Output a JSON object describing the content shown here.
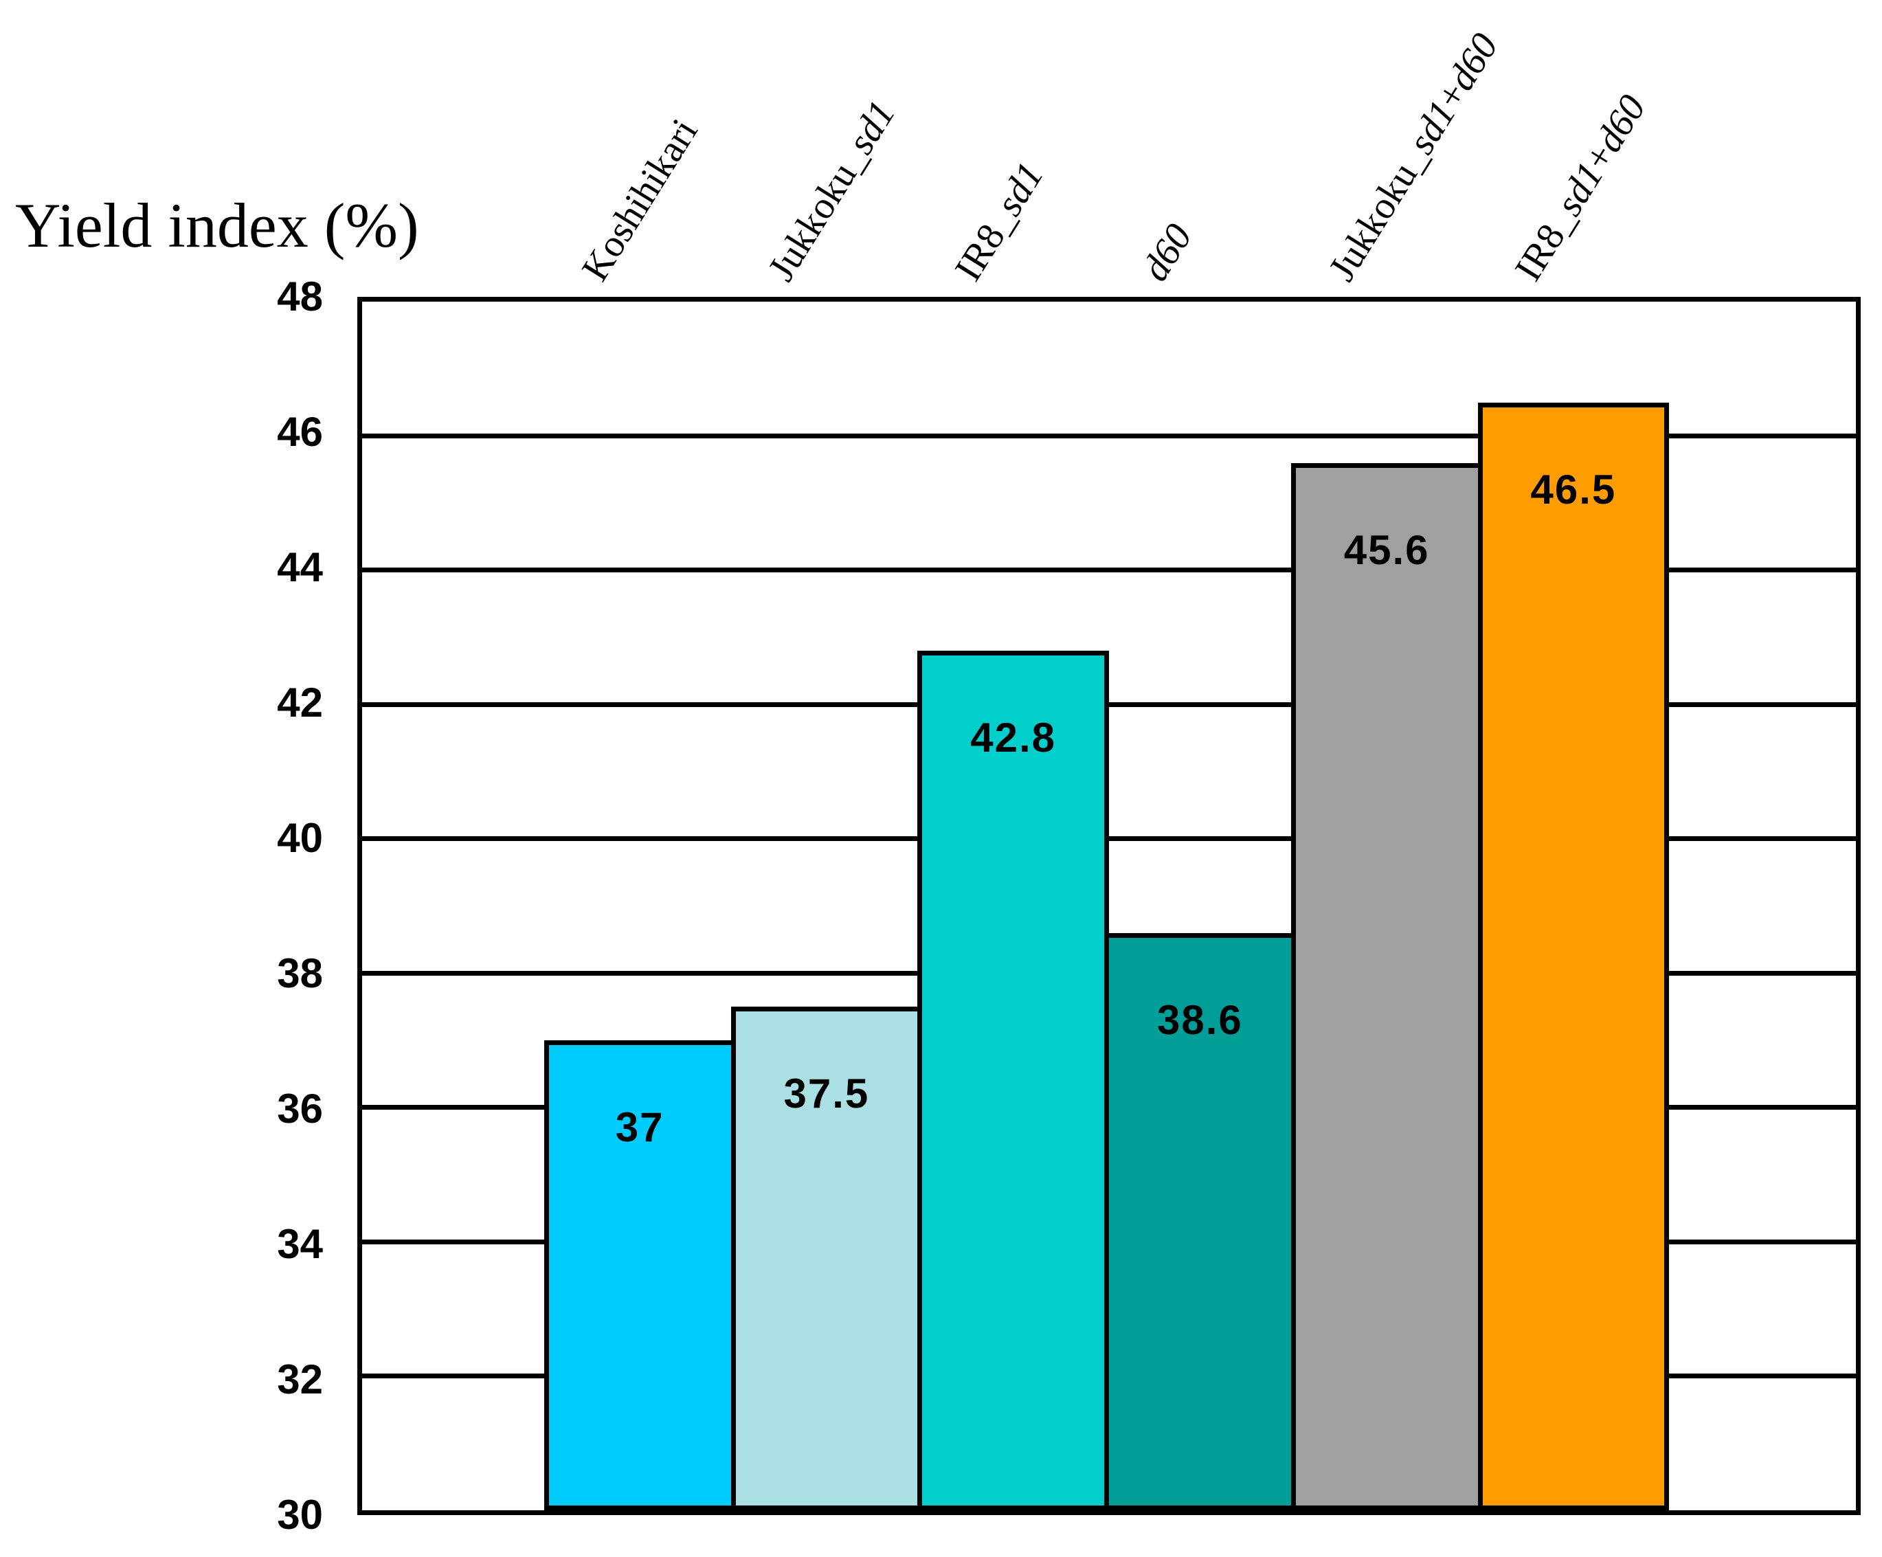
{
  "chart_data": {
    "type": "bar",
    "title": "Yield index (%)",
    "categories": [
      "Koshihikari",
      "Jukkoku_sd1",
      "IR8_sd1",
      "d60",
      "Jukkoku_sd1+d60",
      "IR8_sd1+d60"
    ],
    "categories_rich": [
      [
        {
          "t": "Koshihikari",
          "i": false
        }
      ],
      [
        {
          "t": "Jukkoku_",
          "i": false
        },
        {
          "t": "sd1",
          "i": true
        }
      ],
      [
        {
          "t": "IR8_",
          "i": false
        },
        {
          "t": "sd1",
          "i": true
        }
      ],
      [
        {
          "t": "d60",
          "i": true
        }
      ],
      [
        {
          "t": "Jukkoku_",
          "i": false
        },
        {
          "t": "sd1",
          "i": true
        },
        {
          "t": "+",
          "i": false
        },
        {
          "t": "d60",
          "i": true
        }
      ],
      [
        {
          "t": "IR8_",
          "i": false
        },
        {
          "t": "sd1",
          "i": true
        },
        {
          "t": "+",
          "i": false
        },
        {
          "t": "d60",
          "i": true
        }
      ]
    ],
    "values": [
      37,
      37.5,
      42.8,
      38.6,
      45.6,
      46.5
    ],
    "value_labels": [
      "37",
      "37.5",
      "42.8",
      "38.6",
      "45.6",
      "46.5"
    ],
    "bar_colors": [
      "#00CCFF",
      "#AADFE4",
      "#00CFCC",
      "#009E99",
      "#A0A0A0",
      "#FF9D00"
    ],
    "bar_outline_color": "#000000",
    "ylim": [
      30,
      48
    ],
    "yticks": [
      30,
      32,
      34,
      36,
      38,
      40,
      42,
      44,
      46,
      48
    ],
    "grid": true,
    "grid_color": "#000000",
    "legend": "none",
    "xlabel": "",
    "ylabel": ""
  }
}
